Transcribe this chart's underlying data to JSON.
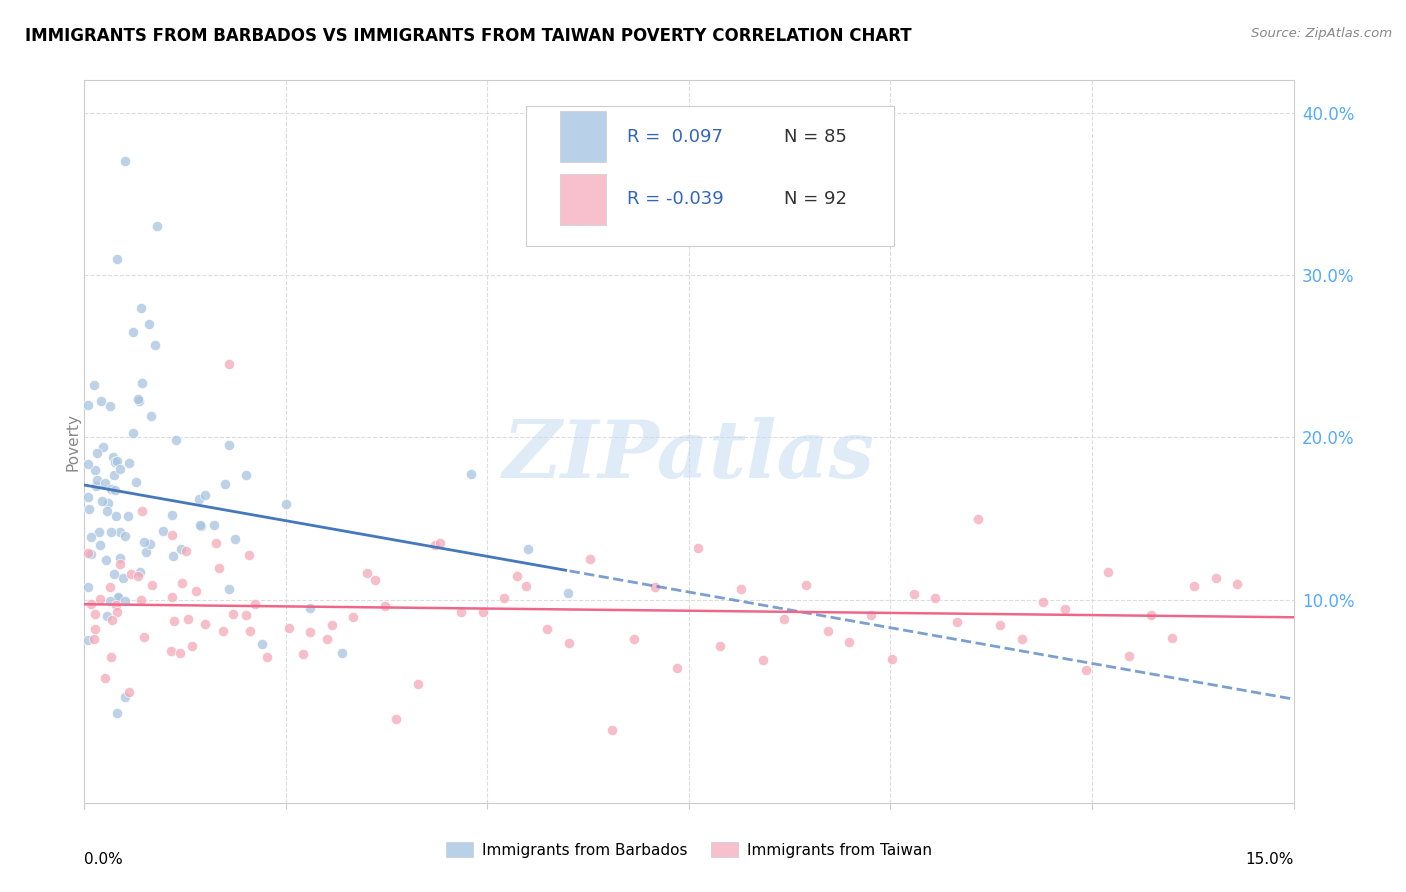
{
  "title": "IMMIGRANTS FROM BARBADOS VS IMMIGRANTS FROM TAIWAN POVERTY CORRELATION CHART",
  "source": "Source: ZipAtlas.com",
  "ylabel": "Poverty",
  "xlim": [
    0.0,
    0.15
  ],
  "ylim": [
    -0.025,
    0.42
  ],
  "barbados_R": 0.097,
  "barbados_N": 85,
  "taiwan_R": -0.039,
  "taiwan_N": 92,
  "blue_color": "#A8C4E0",
  "pink_color": "#F4A8B8",
  "blue_fill": "#B8D0E8",
  "pink_fill": "#F8C0CC",
  "blue_line_color": "#4477BB",
  "pink_line_color": "#EE6688",
  "blue_text_color": "#3366BB",
  "pink_text_color": "#CC3355",
  "n_text_color": "#333333",
  "ytick_color": "#55AAFF",
  "watermark_color": "#C5DCF0",
  "background": "#FFFFFF",
  "grid_color": "#DDDDDD",
  "spine_color": "#CCCCCC"
}
